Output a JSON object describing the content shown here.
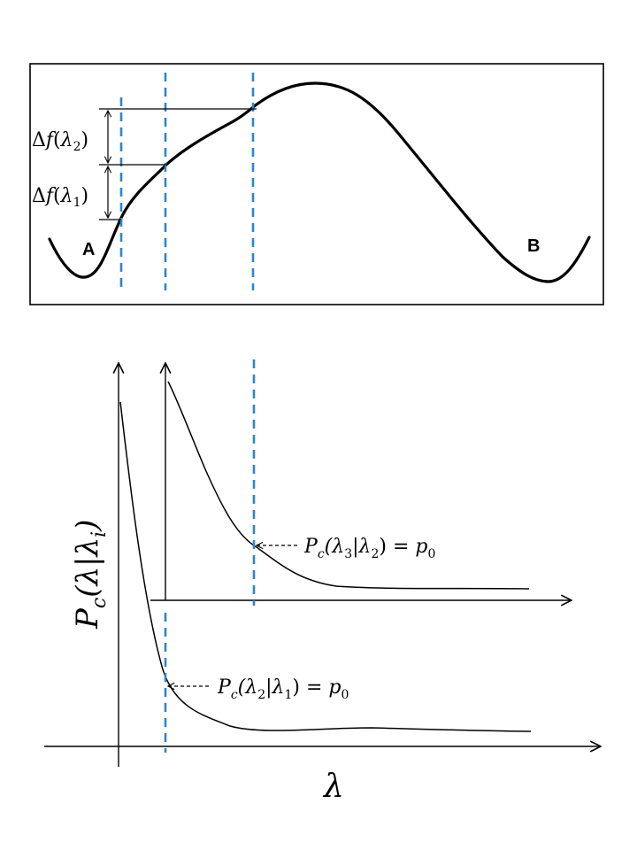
{
  "colors": {
    "curve": "#000000",
    "frame": "#000000",
    "dashed_marker": "#2F86C8",
    "background": "#ffffff"
  },
  "top_panel": {
    "point_a_label": "A",
    "point_b_label": "B",
    "delta_f_lambda2": {
      "prefix": "Δ",
      "func": "f",
      "open": "(",
      "var": "λ",
      "sub": "2",
      "close": ")"
    },
    "delta_f_lambda1": {
      "prefix": "Δ",
      "func": "f",
      "open": "(",
      "var": "λ",
      "sub": "1",
      "close": ")"
    }
  },
  "bottom_panel": {
    "y_axis_label": {
      "main": "P",
      "sub_c": "c",
      "args": "(λ|λ",
      "sub_i": "i",
      "close": ")"
    },
    "x_axis_label": "λ",
    "annotation_upper": {
      "p": "P",
      "c": "c",
      "a": "(λ",
      "s1": "3",
      "b": "|λ",
      "s2": "2",
      "d": ") = ",
      "p0": "p",
      "zero": "0"
    },
    "annotation_lower": {
      "p": "P",
      "c": "c",
      "a": "(λ",
      "s1": "2",
      "b": "|λ",
      "s2": "1",
      "d": ") = ",
      "p0": "p",
      "zero": "0"
    }
  }
}
